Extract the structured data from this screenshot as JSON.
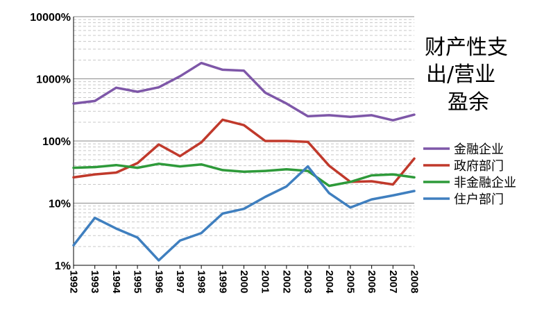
{
  "chart_data": {
    "type": "line",
    "y_scale": "log",
    "ylim": [
      1,
      10000
    ],
    "title_lines": [
      "财产性支",
      "出/营业",
      "盈余"
    ],
    "xlabel": "",
    "ylabel": "",
    "grid": true,
    "legend_position": "right",
    "x": [
      "1992",
      "1993",
      "1994",
      "1995",
      "1996",
      "1997",
      "1998",
      "1999",
      "2000",
      "2001",
      "2002",
      "2003",
      "2004",
      "2005",
      "2006",
      "2007",
      "2008"
    ],
    "y_ticks": [
      {
        "value": 10000,
        "label": "10000%"
      },
      {
        "value": 1000,
        "label": "1000%"
      },
      {
        "value": 100,
        "label": "100%"
      },
      {
        "value": 10,
        "label": "10%"
      },
      {
        "value": 1,
        "label": "1%"
      }
    ],
    "series": [
      {
        "name": "金融企业",
        "color": "#7E57A8",
        "values": [
          400,
          440,
          720,
          620,
          730,
          1100,
          1800,
          1400,
          1350,
          600,
          400,
          250,
          260,
          245,
          260,
          215,
          265
        ]
      },
      {
        "name": "政府部门",
        "color": "#C0392B",
        "values": [
          26,
          29,
          31,
          44,
          88,
          57,
          95,
          220,
          180,
          100,
          100,
          97,
          40,
          22,
          22.5,
          20,
          52
        ]
      },
      {
        "name": "非金融企业",
        "color": "#2E9A3A",
        "values": [
          37,
          38,
          41,
          37,
          43,
          39,
          42,
          34,
          32,
          33,
          35,
          33,
          19,
          22,
          28,
          29,
          26
        ]
      },
      {
        "name": "住户部门",
        "color": "#3F7FBF",
        "values": [
          2.1,
          5.8,
          3.9,
          2.8,
          1.2,
          2.5,
          3.3,
          6.8,
          8.1,
          12.6,
          18.6,
          39,
          14.5,
          8.5,
          11.5,
          13.3,
          15.7
        ]
      }
    ]
  }
}
